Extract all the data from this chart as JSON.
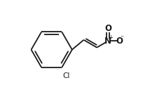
{
  "bg_color": "#ffffff",
  "line_color": "#1a1a1a",
  "figsize": [
    2.24,
    1.38
  ],
  "dpi": 100,
  "bond_lw": 1.3,
  "text_Cl": "Cl",
  "text_N": "N",
  "text_O_top": "O",
  "text_O_right": "O",
  "text_plus": "+",
  "text_minus": "⁻"
}
